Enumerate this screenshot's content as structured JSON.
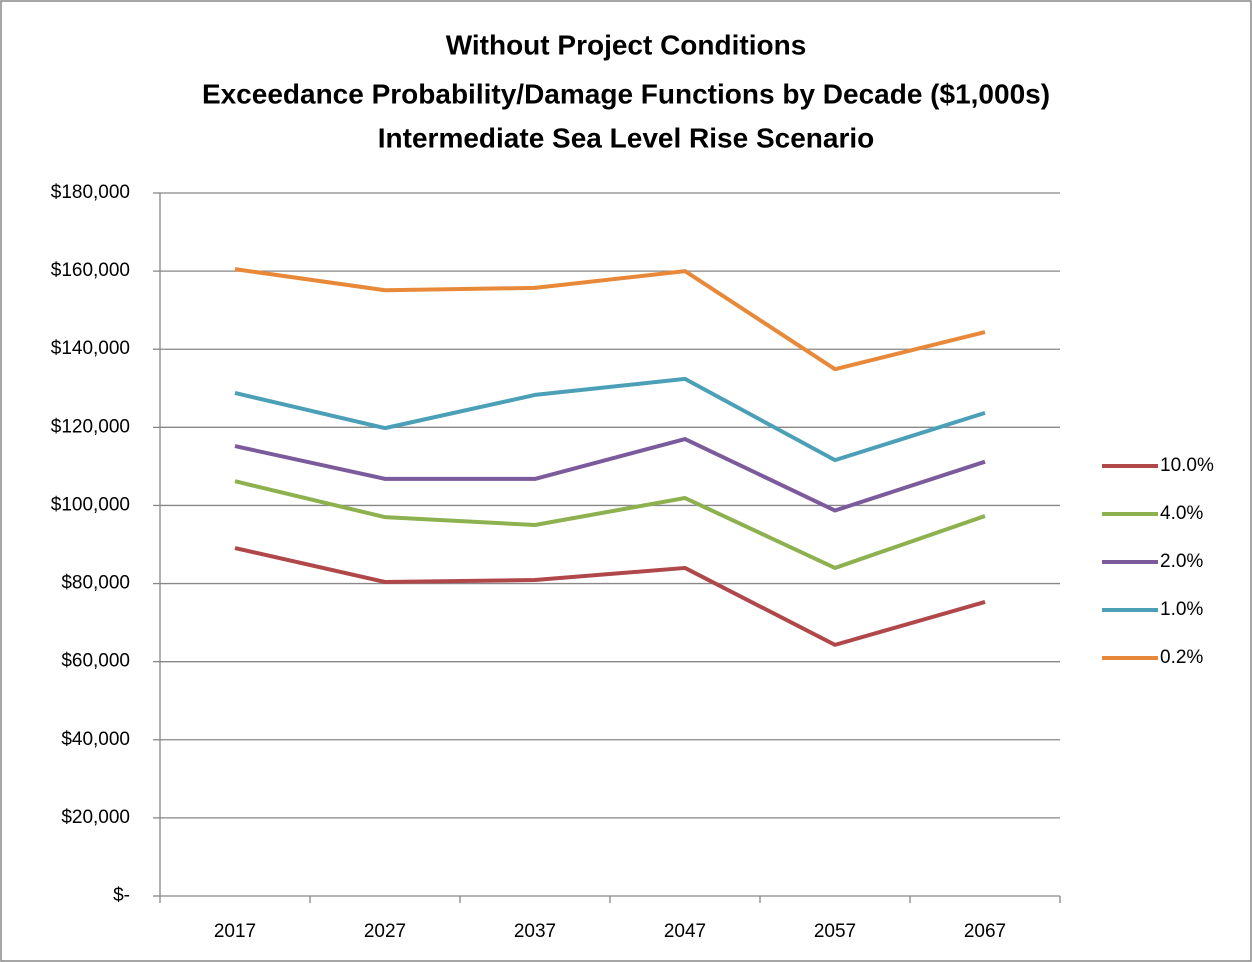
{
  "chart_data": {
    "type": "line",
    "title": [
      "Without Project Conditions",
      "Exceedance Probability/Damage Functions by Decade ($1,000s)",
      "Intermediate Sea Level Rise Scenario"
    ],
    "categories": [
      "2017",
      "2027",
      "2037",
      "2047",
      "2057",
      "2067"
    ],
    "series": [
      {
        "name": "10.0%",
        "color": "#b0484a",
        "values": [
          89100,
          80400,
          80900,
          84000,
          64300,
          75300
        ]
      },
      {
        "name": "4.0%",
        "color": "#8db14e",
        "values": [
          106200,
          97000,
          95000,
          101900,
          84000,
          97300
        ]
      },
      {
        "name": "2.0%",
        "color": "#7b5b9b",
        "values": [
          115200,
          106800,
          106800,
          117000,
          98700,
          111200
        ]
      },
      {
        "name": "1.0%",
        "color": "#4ba0b8",
        "values": [
          128800,
          119800,
          128300,
          132400,
          111600,
          123700
        ]
      },
      {
        "name": "0.2%",
        "color": "#e8893a",
        "values": [
          160500,
          155100,
          155700,
          160000,
          134900,
          144400
        ]
      }
    ],
    "ylim": [
      0,
      180000
    ],
    "yticks": [
      {
        "value": 0,
        "label": "$-"
      },
      {
        "value": 20000,
        "label": "$20,000"
      },
      {
        "value": 40000,
        "label": "$40,000"
      },
      {
        "value": 60000,
        "label": "$60,000"
      },
      {
        "value": 80000,
        "label": "$80,000"
      },
      {
        "value": 100000,
        "label": "$100,000"
      },
      {
        "value": 120000,
        "label": "$120,000"
      },
      {
        "value": 140000,
        "label": "$140,000"
      },
      {
        "value": 160000,
        "label": "$160,000"
      },
      {
        "value": 180000,
        "label": "$180,000"
      }
    ],
    "grid": true,
    "legend": "right"
  }
}
